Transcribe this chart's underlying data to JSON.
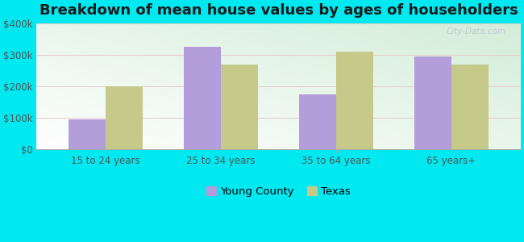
{
  "title": "Breakdown of mean house values by ages of householders",
  "categories": [
    "15 to 24 years",
    "25 to 34 years",
    "35 to 64 years",
    "65 years+"
  ],
  "young_county": [
    95000,
    325000,
    175000,
    295000
  ],
  "texas": [
    200000,
    270000,
    310000,
    270000
  ],
  "young_county_color": "#b39ddb",
  "texas_color": "#c5c98a",
  "background_color": "#00e8f0",
  "ylim": [
    0,
    400000
  ],
  "yticks": [
    0,
    100000,
    200000,
    300000,
    400000
  ],
  "ytick_labels": [
    "$0",
    "$100k",
    "$200k",
    "$300k",
    "$400k"
  ],
  "legend_labels": [
    "Young County",
    "Texas"
  ],
  "bar_width": 0.32,
  "title_fontsize": 13,
  "tick_fontsize": 8.5,
  "legend_fontsize": 9.5,
  "watermark": "City-Data.com"
}
